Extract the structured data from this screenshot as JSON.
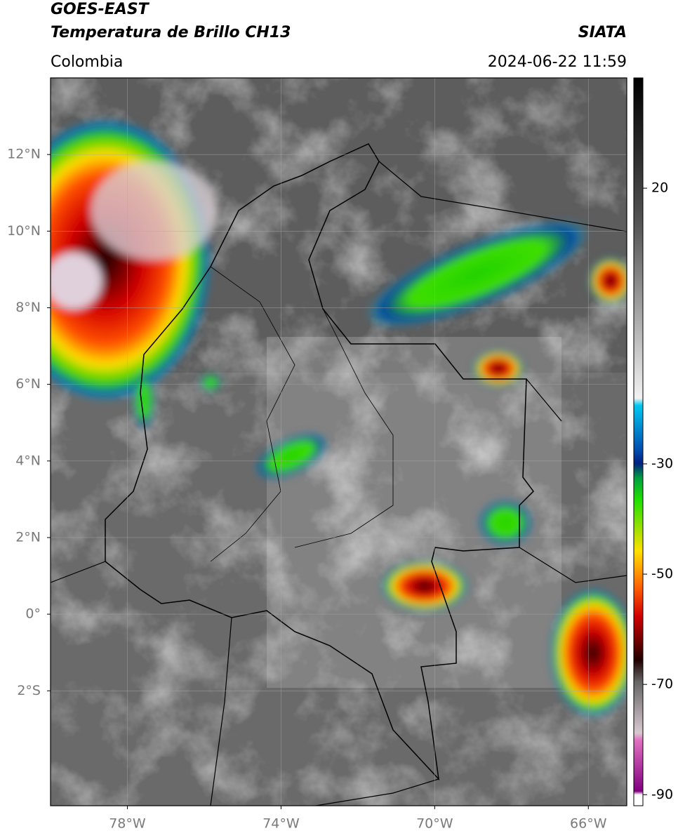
{
  "header": {
    "title": "GOES-EAST",
    "subtitle": "Temperatura de Brillo CH13",
    "source": "SIATA",
    "region": "Colombia",
    "datetime": "2024-06-22 11:59"
  },
  "map": {
    "xlim": [
      -80,
      -65
    ],
    "ylim": [
      -5,
      14
    ],
    "xticks": [
      {
        "value": -78,
        "label": "78°W"
      },
      {
        "value": -74,
        "label": "74°W"
      },
      {
        "value": -70,
        "label": "70°W"
      },
      {
        "value": -66,
        "label": "66°W"
      }
    ],
    "yticks": [
      {
        "value": 12,
        "label": "12°N"
      },
      {
        "value": 10,
        "label": "10°N"
      },
      {
        "value": 8,
        "label": "8°N"
      },
      {
        "value": 6,
        "label": "6°N"
      },
      {
        "value": 4,
        "label": "4°N"
      },
      {
        "value": 2,
        "label": "2°N"
      },
      {
        "value": 0,
        "label": "0°"
      },
      {
        "value": -2,
        "label": "2°S"
      }
    ],
    "grid": true
  },
  "colorbar": {
    "lim": [
      -92,
      40
    ],
    "ticks": [
      20,
      -30,
      -50,
      -70,
      -90
    ]
  }
}
